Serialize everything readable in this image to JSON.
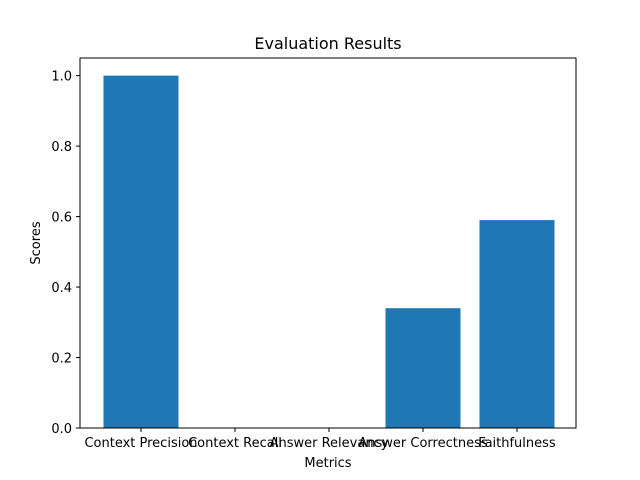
{
  "chart_data": {
    "type": "bar",
    "title": "Evaluation Results",
    "xlabel": "Metrics",
    "ylabel": "Scores",
    "categories": [
      "Context Precision",
      "Context Recall",
      "Answer Relevancy",
      "Answer Correctness",
      "Faithfulness"
    ],
    "values": [
      1.0,
      0.0,
      0.0,
      0.34,
      0.59
    ],
    "ylim": [
      0,
      1.05
    ],
    "yticks": [
      "0.0",
      "0.2",
      "0.4",
      "0.6",
      "0.8",
      "1.0"
    ],
    "bar_color": "#1f77b4",
    "grid": false,
    "legend": "none"
  }
}
